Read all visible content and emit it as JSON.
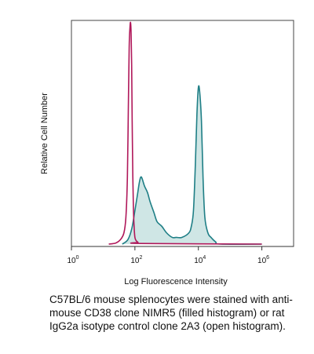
{
  "chart_data": {
    "type": "area",
    "title": "",
    "xlabel": "Log Fluorescence Intensity",
    "ylabel": "Relative Cell Number",
    "xscale": "log",
    "xlim": [
      1,
      10000000
    ],
    "ylim": [
      0,
      100
    ],
    "x_ticks": [
      {
        "base": "10",
        "exp": "0",
        "value": 1
      },
      {
        "base": "10",
        "exp": "2",
        "value": 100
      },
      {
        "base": "10",
        "exp": "4",
        "value": 10000
      },
      {
        "base": "10",
        "exp": "6",
        "value": 1000000
      }
    ],
    "grid": false,
    "legend": "none",
    "series": [
      {
        "style": "open",
        "color": "#b0185a",
        "x": [
          15,
          25,
          35,
          45,
          52,
          58,
          62,
          66,
          70,
          73,
          76,
          79,
          82,
          86,
          90,
          95,
          100,
          110,
          125,
          150,
          1000000
        ],
        "y": [
          0,
          0.5,
          2,
          5,
          12,
          30,
          60,
          88,
          97,
          99,
          94,
          80,
          55,
          30,
          15,
          7,
          3,
          1.5,
          0.8,
          0.3,
          0
        ]
      },
      {
        "style": "filled",
        "color": "#1f7f86",
        "fill": "#cfe6e5",
        "x": [
          40,
          60,
          80,
          100,
          120,
          140,
          160,
          200,
          250,
          300,
          400,
          500,
          700,
          1000,
          1500,
          2000,
          3000,
          5000,
          6000,
          7000,
          8000,
          9000,
          10000,
          11000,
          12500,
          14000,
          16000,
          20000,
          25000,
          35000,
          50000,
          1000000
        ],
        "y": [
          0,
          2,
          7,
          15,
          22,
          28,
          30,
          26,
          23,
          19,
          14,
          10,
          8,
          5,
          3,
          3,
          3,
          5,
          8,
          15,
          35,
          58,
          70,
          68,
          55,
          30,
          12,
          5,
          3,
          1,
          0,
          0
        ]
      }
    ]
  },
  "caption": "C57BL/6 mouse splenocytes were stained with anti-mouse CD38 clone NIMR5 (filled histogram) or rat IgG2a isotype control clone 2A3 (open histogram)."
}
